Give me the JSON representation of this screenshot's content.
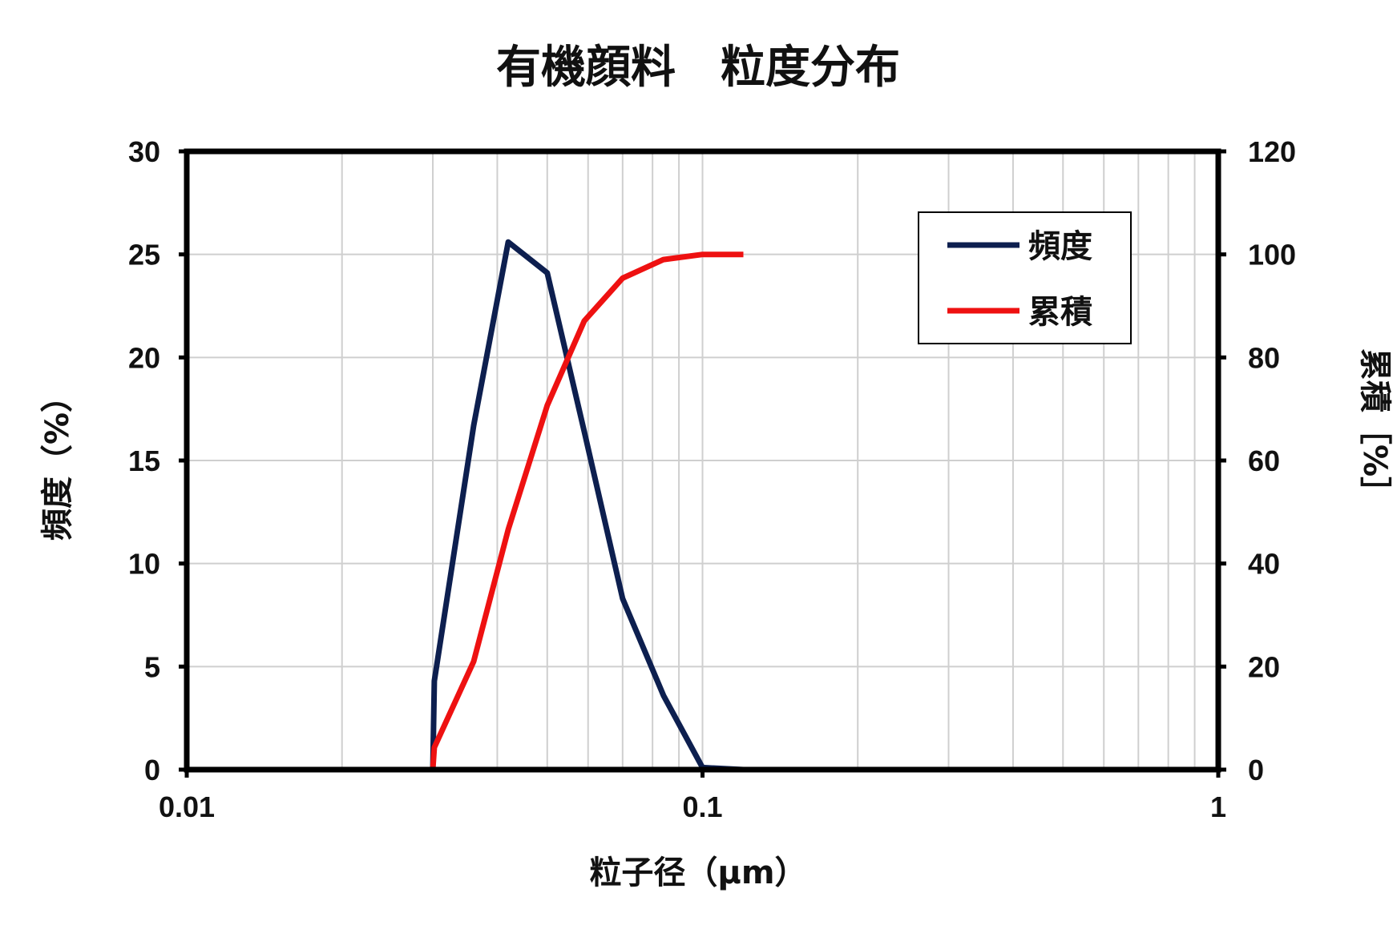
{
  "chart_data": {
    "type": "line",
    "title": "有機顔料　粒度分布",
    "xlabel": "粒子径（μm）",
    "ylabel": "頻度（%）",
    "y2label": "累積［%］",
    "xscale": "log",
    "xlim": [
      0.01,
      1
    ],
    "ylim": [
      0,
      30
    ],
    "y2lim": [
      0,
      120
    ],
    "x_ticks": [
      "0.01",
      "0.1",
      "1"
    ],
    "y_ticks": [
      "0",
      "5",
      "10",
      "15",
      "20",
      "25",
      "30"
    ],
    "y2_ticks": [
      "0",
      "20",
      "40",
      "60",
      "80",
      "100",
      "120"
    ],
    "grid": true,
    "legend_position": "top-right",
    "series": [
      {
        "name": "頻度",
        "axis": "left",
        "color": "#0d1f4f",
        "x": [
          0.03,
          0.0302,
          0.036,
          0.042,
          0.05,
          0.059,
          0.07,
          0.084,
          0.1,
          0.12
        ],
        "y": [
          0.0,
          4.3,
          16.7,
          25.6,
          24.1,
          16.4,
          8.3,
          3.6,
          0.1,
          0.0
        ]
      },
      {
        "name": "累積",
        "axis": "right",
        "color": "#ee1111",
        "x": [
          0.03,
          0.0302,
          0.036,
          0.042,
          0.05,
          0.059,
          0.07,
          0.084,
          0.1,
          0.12
        ],
        "y": [
          0.0,
          4.3,
          21.0,
          46.6,
          70.7,
          87.1,
          95.4,
          99.0,
          100.0,
          100.0
        ]
      }
    ]
  }
}
